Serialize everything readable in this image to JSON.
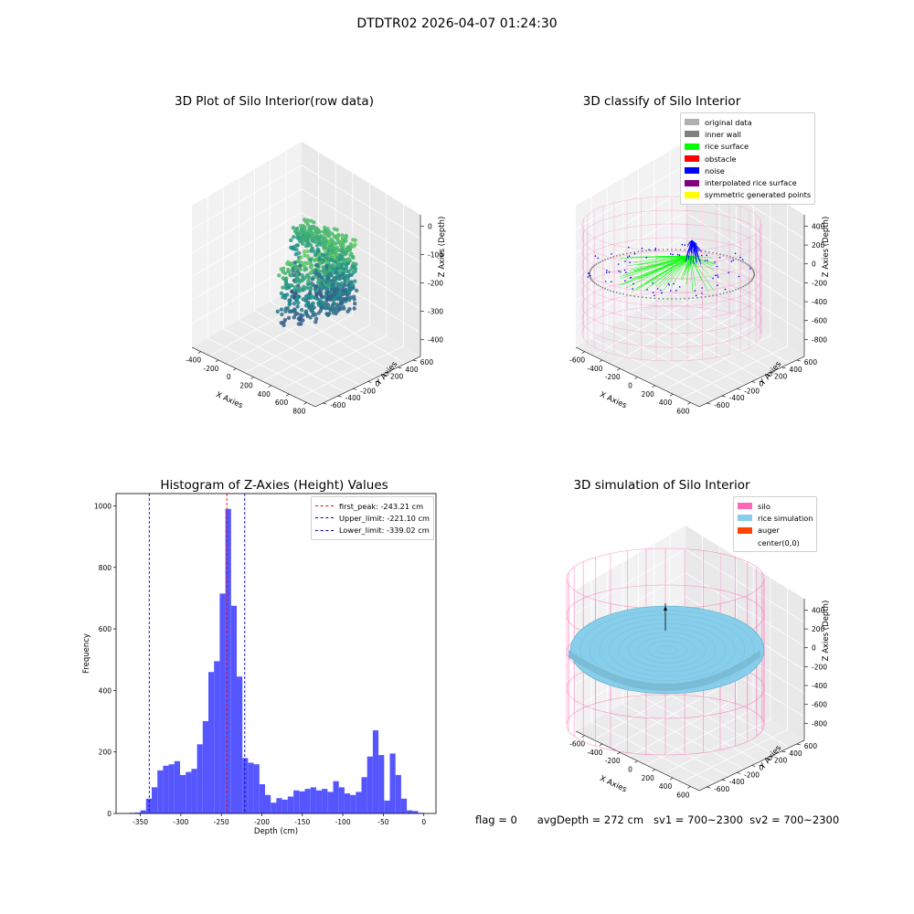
{
  "figure": {
    "suptitle": "DTDTR02 2026-04-07 01:24:30",
    "footer": {
      "flag": "flag = 0",
      "avg_depth": "avgDepth = 272 cm",
      "sv1": "sv1 = 700~2300",
      "sv2": "sv2 = 700~2300"
    }
  },
  "colors": {
    "histogram_bar": "#4d4dff",
    "first_peak_line": "#ff0000",
    "limit_lines": "#0000cc",
    "original_data": "#b0b0b0",
    "inner_wall": "#808080",
    "rice_surface": "#00ff00",
    "obstacle": "#ff0000",
    "noise": "#0000ff",
    "interpolated_rice_surface": "#800080",
    "symmetric_generated_points": "#ffff00",
    "silo": "#ff69b4",
    "rice_simulation": "#87ceeb",
    "auger": "#ff4500",
    "viridis_low": "#440154",
    "viridis_mid": "#21918c",
    "viridis_high": "#fde725"
  },
  "chart_data": [
    {
      "id": "raw",
      "type": "scatter",
      "title": "3D Plot of Silo Interior(row data)",
      "xlabel": "X Axies",
      "ylabel": "Y Axies",
      "zlabel": "Z Axies (Depth)",
      "xticks": [
        "-400",
        "-200",
        "0",
        "200",
        "400",
        "600",
        "800"
      ],
      "yticks": [
        "-600",
        "-400",
        "-200",
        "0",
        "200",
        "400",
        "600"
      ],
      "zticks": [
        "0",
        "-100",
        "-200",
        "-300",
        "-400"
      ],
      "xlim": [
        -550,
        850
      ],
      "ylim": [
        -700,
        700
      ],
      "zlim": [
        -450,
        20
      ],
      "colormap": "viridis"
    },
    {
      "id": "classify",
      "type": "scatter",
      "title": "3D classify of Silo Interior",
      "xlabel": "X Axies",
      "ylabel": "Y Axies",
      "zlabel": "Z Axies (Depth)",
      "xticks": [
        "-600",
        "-400",
        "-200",
        "0",
        "200",
        "400",
        "600"
      ],
      "yticks": [
        "-600",
        "-400",
        "-200",
        "0",
        "200",
        "400",
        "600"
      ],
      "zticks": [
        "400",
        "200",
        "0",
        "-200",
        "-400",
        "-600",
        "-800"
      ],
      "xlim": [
        -700,
        700
      ],
      "ylim": [
        -700,
        700
      ],
      "zlim": [
        -900,
        450
      ],
      "legend_position": "upper right",
      "legend": [
        {
          "label": "original data",
          "color": "#b0b0b0"
        },
        {
          "label": "inner wall",
          "color": "#808080"
        },
        {
          "label": "rice surface",
          "color": "#00ff00"
        },
        {
          "label": "obstacle",
          "color": "#ff0000"
        },
        {
          "label": "noise",
          "color": "#0000ff"
        },
        {
          "label": "interpolated rice surface",
          "color": "#800080"
        },
        {
          "label": "symmetric generated points",
          "color": "#ffff00"
        }
      ]
    },
    {
      "id": "hist",
      "type": "bar",
      "title": "Histogram of Z-Axies (Height) Values",
      "xlabel": "Depth (cm)",
      "ylabel": "Frequency",
      "xlim": [
        -380,
        15
      ],
      "ylim": [
        0,
        1040
      ],
      "xticks": [
        -350,
        -300,
        -250,
        -200,
        -150,
        -100,
        -50,
        0
      ],
      "yticks": [
        0,
        200,
        400,
        600,
        800,
        1000
      ],
      "bin_width": 7,
      "bin_starts": [
        -364,
        -357,
        -350,
        -343,
        -336,
        -329,
        -322,
        -315,
        -308,
        -301,
        -294,
        -287,
        -280,
        -273,
        -266,
        -259,
        -252,
        -245,
        -238,
        -231,
        -224,
        -217,
        -210,
        -203,
        -196,
        -189,
        -182,
        -175,
        -168,
        -161,
        -154,
        -147,
        -140,
        -133,
        -126,
        -119,
        -112,
        -105,
        -98,
        -91,
        -84,
        -77,
        -70,
        -63,
        -56,
        -49,
        -42,
        -35,
        -28,
        -21,
        -14,
        -7
      ],
      "values": [
        2,
        3,
        10,
        48,
        85,
        140,
        155,
        160,
        170,
        125,
        135,
        145,
        225,
        300,
        460,
        495,
        715,
        990,
        675,
        445,
        180,
        165,
        160,
        95,
        60,
        35,
        50,
        45,
        55,
        75,
        72,
        80,
        85,
        75,
        80,
        70,
        105,
        85,
        65,
        60,
        70,
        118,
        185,
        270,
        190,
        42,
        195,
        125,
        48,
        10,
        8,
        2
      ],
      "vlines": [
        {
          "label": "first_peak: -243.21 cm",
          "x": -243.21,
          "color": "#ff0000"
        },
        {
          "label": "Upper_limit: -221.10 cm",
          "x": -221.1,
          "color": "#0000cc"
        },
        {
          "label": "Lower_limit: -339.02 cm",
          "x": -339.02,
          "color": "#0000cc"
        }
      ],
      "legend_position": "upper right"
    },
    {
      "id": "sim",
      "type": "scatter",
      "title": "3D simulation of Silo Interior",
      "xlabel": "X Axies",
      "ylabel": "Y Axies",
      "zlabel": "Z Axies (Depth)",
      "xticks": [
        "-600",
        "-400",
        "-200",
        "0",
        "200",
        "400",
        "600"
      ],
      "yticks": [
        "-600",
        "-400",
        "-200",
        "0",
        "200",
        "400",
        "600"
      ],
      "zticks": [
        "400",
        "200",
        "0",
        "-200",
        "-400",
        "-600",
        "-800"
      ],
      "xlim": [
        -700,
        700
      ],
      "ylim": [
        -700,
        700
      ],
      "zlim": [
        -900,
        450
      ],
      "legend_position": "upper right",
      "legend": [
        {
          "label": "silo",
          "color": "#ff69b4"
        },
        {
          "label": "rice simulation",
          "color": "#87ceeb"
        },
        {
          "label": "auger",
          "color": "#ff4500"
        },
        {
          "label": "center(0,0)",
          "color": "#ffffff"
        }
      ]
    }
  ]
}
